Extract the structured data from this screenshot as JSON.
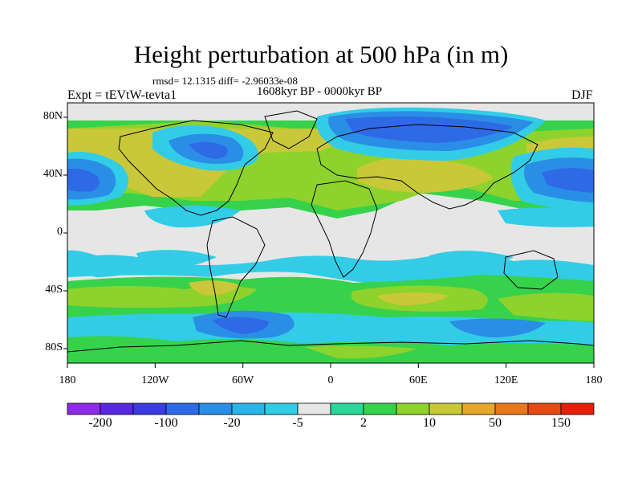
{
  "title": "Height perturbation at 500 hPa (in m)",
  "stats": "rmsd= 12.1315 diff= -2.96033e-08",
  "period": "1608kyr BP - 0000kyr BP",
  "experiment": "Expt = tEVtW-tevta1",
  "season": "DJF",
  "map": {
    "lat_labels": [
      {
        "text": "80N",
        "lat": 80
      },
      {
        "text": "40N",
        "lat": 40
      },
      {
        "text": "0",
        "lat": 0
      },
      {
        "text": "40S",
        "lat": -40
      },
      {
        "text": "80S",
        "lat": -80
      }
    ],
    "lon_labels": [
      {
        "text": "180",
        "lon": -180
      },
      {
        "text": "120W",
        "lon": -120
      },
      {
        "text": "60W",
        "lon": -60
      },
      {
        "text": "0",
        "lon": 0
      },
      {
        "text": "60E",
        "lon": 60
      },
      {
        "text": "120E",
        "lon": 120
      },
      {
        "text": "180",
        "lon": 180
      }
    ],
    "background_color": "#e6e6e6"
  },
  "colorbar": {
    "colors": [
      "#8c2ce6",
      "#5a28e0",
      "#3a3ce2",
      "#2f6ae6",
      "#2a8ee6",
      "#2ab4e8",
      "#32cce6",
      "#e6e6e6",
      "#2ad69a",
      "#36d24c",
      "#8ed22e",
      "#c8c83a",
      "#e6a82a",
      "#e6781e",
      "#e64a14",
      "#e61e0a"
    ],
    "labels": [
      {
        "text": "-200",
        "edge": 1
      },
      {
        "text": "-100",
        "edge": 3
      },
      {
        "text": "-20",
        "edge": 5
      },
      {
        "text": "-5",
        "edge": 7
      },
      {
        "text": "2",
        "edge": 9
      },
      {
        "text": "10",
        "edge": 11
      },
      {
        "text": "50",
        "edge": 13
      },
      {
        "text": "150",
        "edge": 15
      }
    ]
  }
}
